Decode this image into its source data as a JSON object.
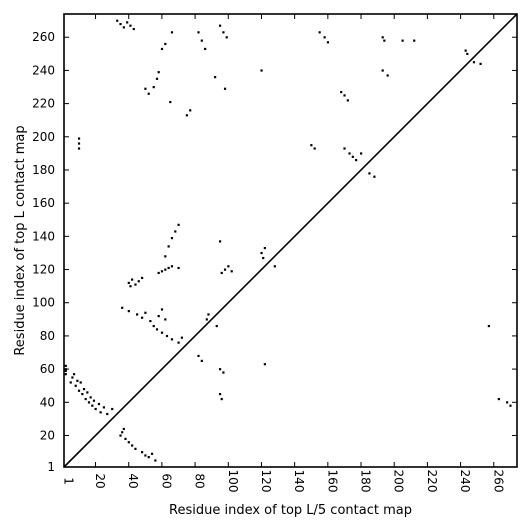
{
  "chart_data": {
    "type": "scatter",
    "title": "",
    "xlabel": "Residue index of top L/5 contact map",
    "ylabel": "Residue index of top L contact map",
    "xlim": [
      1,
      274
    ],
    "ylim": [
      1,
      274
    ],
    "xticks": [
      1,
      20,
      40,
      60,
      80,
      100,
      120,
      140,
      160,
      180,
      200,
      220,
      240,
      260
    ],
    "yticks": [
      1,
      20,
      40,
      60,
      80,
      100,
      120,
      140,
      160,
      180,
      200,
      220,
      240,
      260
    ],
    "grid": false,
    "diagonal": {
      "x": [
        1,
        274
      ],
      "y": [
        1,
        274
      ]
    },
    "series": [
      {
        "marker": "square",
        "color": "#000000",
        "points": [
          [
            2,
            57
          ],
          [
            2,
            59
          ],
          [
            2,
            60
          ],
          [
            2,
            62
          ],
          [
            5,
            52
          ],
          [
            6,
            55
          ],
          [
            7,
            57
          ],
          [
            8,
            50
          ],
          [
            9,
            53
          ],
          [
            10,
            47
          ],
          [
            11,
            52
          ],
          [
            12,
            45
          ],
          [
            13,
            48
          ],
          [
            14,
            42
          ],
          [
            15,
            46
          ],
          [
            16,
            40
          ],
          [
            17,
            43
          ],
          [
            18,
            38
          ],
          [
            19,
            41
          ],
          [
            20,
            36
          ],
          [
            22,
            39
          ],
          [
            23,
            34
          ],
          [
            25,
            37
          ],
          [
            27,
            33
          ],
          [
            30,
            36
          ],
          [
            35,
            20
          ],
          [
            36,
            22
          ],
          [
            37,
            24
          ],
          [
            38,
            18
          ],
          [
            40,
            16
          ],
          [
            42,
            14
          ],
          [
            44,
            12
          ],
          [
            48,
            10
          ],
          [
            50,
            8
          ],
          [
            52,
            7
          ],
          [
            54,
            9
          ],
          [
            56,
            5
          ],
          [
            36,
            97
          ],
          [
            40,
            95
          ],
          [
            45,
            93
          ],
          [
            48,
            91
          ],
          [
            50,
            94
          ],
          [
            53,
            89
          ],
          [
            55,
            86
          ],
          [
            57,
            84
          ],
          [
            60,
            82
          ],
          [
            63,
            80
          ],
          [
            66,
            78
          ],
          [
            70,
            76
          ],
          [
            72,
            79
          ],
          [
            58,
            92
          ],
          [
            60,
            96
          ],
          [
            62,
            90
          ],
          [
            40,
            112
          ],
          [
            41,
            110
          ],
          [
            42,
            114
          ],
          [
            44,
            111
          ],
          [
            46,
            113
          ],
          [
            48,
            115
          ],
          [
            58,
            118
          ],
          [
            60,
            119
          ],
          [
            62,
            120
          ],
          [
            64,
            121
          ],
          [
            66,
            122
          ],
          [
            70,
            121
          ],
          [
            62,
            128
          ],
          [
            64,
            134
          ],
          [
            66,
            139
          ],
          [
            68,
            143
          ],
          [
            70,
            147
          ],
          [
            10,
            199
          ],
          [
            10,
            196
          ],
          [
            10,
            193
          ],
          [
            33,
            270
          ],
          [
            35,
            268
          ],
          [
            37,
            266
          ],
          [
            39,
            269
          ],
          [
            41,
            267
          ],
          [
            43,
            265
          ],
          [
            60,
            253
          ],
          [
            62,
            256
          ],
          [
            66,
            263
          ],
          [
            50,
            229
          ],
          [
            52,
            226
          ],
          [
            55,
            230
          ],
          [
            57,
            235
          ],
          [
            58,
            239
          ],
          [
            65,
            221
          ],
          [
            75,
            213
          ],
          [
            77,
            216
          ],
          [
            82,
            263
          ],
          [
            84,
            258
          ],
          [
            86,
            253
          ],
          [
            95,
            267
          ],
          [
            97,
            263
          ],
          [
            99,
            260
          ],
          [
            98,
            229
          ],
          [
            92,
            236
          ],
          [
            95,
            137
          ],
          [
            96,
            118
          ],
          [
            98,
            120
          ],
          [
            100,
            122
          ],
          [
            102,
            119
          ],
          [
            82,
            68
          ],
          [
            84,
            65
          ],
          [
            87,
            90
          ],
          [
            88,
            93
          ],
          [
            93,
            86
          ],
          [
            95,
            60
          ],
          [
            97,
            58
          ],
          [
            95,
            45
          ],
          [
            96,
            42
          ],
          [
            120,
            240
          ],
          [
            120,
            130
          ],
          [
            121,
            127
          ],
          [
            122,
            133
          ],
          [
            128,
            122
          ],
          [
            122,
            63
          ],
          [
            155,
            263
          ],
          [
            158,
            260
          ],
          [
            160,
            257
          ],
          [
            150,
            195
          ],
          [
            152,
            193
          ],
          [
            168,
            227
          ],
          [
            170,
            225
          ],
          [
            172,
            222
          ],
          [
            170,
            193
          ],
          [
            173,
            190
          ],
          [
            175,
            188
          ],
          [
            177,
            186
          ],
          [
            180,
            190
          ],
          [
            185,
            178
          ],
          [
            188,
            176
          ],
          [
            193,
            260
          ],
          [
            194,
            258
          ],
          [
            193,
            240
          ],
          [
            196,
            237
          ],
          [
            205,
            258
          ],
          [
            212,
            258
          ],
          [
            243,
            252
          ],
          [
            244,
            250
          ],
          [
            248,
            245
          ],
          [
            252,
            244
          ],
          [
            257,
            86
          ],
          [
            263,
            42
          ],
          [
            268,
            40
          ],
          [
            270,
            38
          ]
        ]
      }
    ]
  }
}
